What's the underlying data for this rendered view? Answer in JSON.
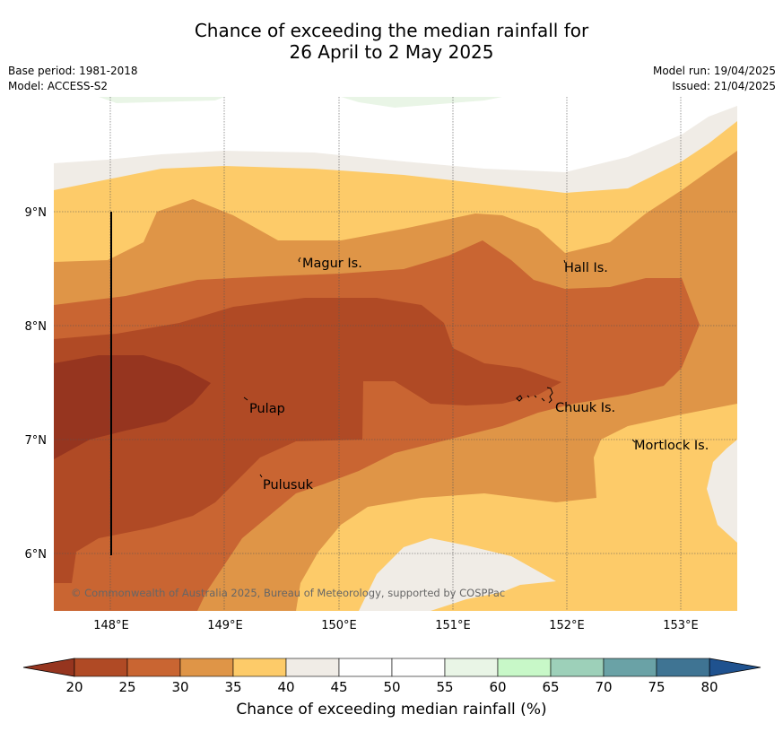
{
  "title": {
    "line1": "Chance of exceeding the median rainfall for",
    "line2": "26 April to 2 May 2025"
  },
  "meta_left": {
    "base_period": "Base period: 1981-2018",
    "model": "Model: ACCESS-S2"
  },
  "meta_right": {
    "model_run": "Model run: 19/04/2025",
    "issued": "Issued: 21/04/2025"
  },
  "map": {
    "lat_ticks": [
      "9°N",
      "8°N",
      "7°N",
      "6°N"
    ],
    "lon_ticks": [
      "148°E",
      "149°E",
      "150°E",
      "151°E",
      "152°E",
      "153°E"
    ],
    "places": [
      "Magur Is.",
      "Hall Is.",
      "Pulap",
      "Chuuk Is.",
      "Mortlock Is.",
      "Pulusuk"
    ],
    "copyright": "© Commonwealth of Australia 2025, Bureau of Meteorology, supported by COSPPac"
  },
  "colorbar": {
    "label": "Chance of exceeding median rainfall (%)",
    "ticks": [
      "20",
      "25",
      "30",
      "35",
      "40",
      "45",
      "50",
      "55",
      "60",
      "65",
      "70",
      "75",
      "80"
    ],
    "colors": [
      "#b04a25",
      "#c96532",
      "#df9547",
      "#fdcb69",
      "#f0ece6",
      "#ffffff",
      "#ffffff",
      "#e9f5e6",
      "#c8f8c8",
      "#9dd0b9",
      "#6aa2a6",
      "#3f7493"
    ],
    "under_color": "#96351f",
    "over_color": "#1f528f"
  }
}
